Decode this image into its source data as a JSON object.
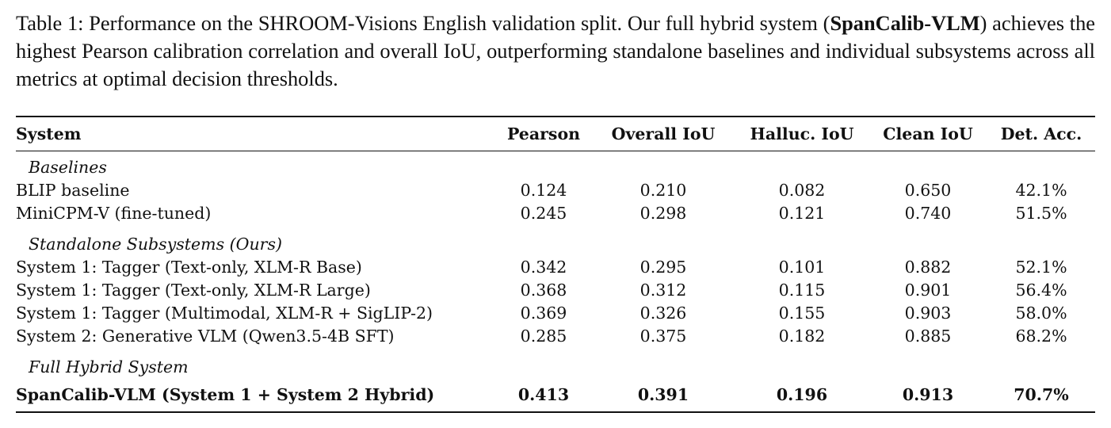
{
  "caption": {
    "prefix": "Table 1:  Performance on the SHROOM-Visions English validation split.  Our full hybrid system (",
    "bold": "SpanCalib-VLM",
    "suffix": ") achieves the highest Pearson calibration correlation and overall IoU, outperforming standalone baselines and individual subsystems across all metrics at optimal decision thresholds."
  },
  "table": {
    "headers": [
      "System",
      "Pearson",
      "Overall IoU",
      "Halluc. IoU",
      "Clean IoU",
      "Det. Acc."
    ],
    "groups": [
      {
        "label": "Baselines",
        "rows": [
          {
            "system": "BLIP baseline",
            "values": [
              "0.124",
              "0.210",
              "0.082",
              "0.650",
              "42.1%"
            ]
          },
          {
            "system": "MiniCPM-V (fine-tuned)",
            "values": [
              "0.245",
              "0.298",
              "0.121",
              "0.740",
              "51.5%"
            ]
          }
        ]
      },
      {
        "label": "Standalone Subsystems (Ours)",
        "rows": [
          {
            "system": "System 1:  Tagger (Text-only, XLM-R Base)",
            "values": [
              "0.342",
              "0.295",
              "0.101",
              "0.882",
              "52.1%"
            ]
          },
          {
            "system": "System 1:  Tagger (Text-only, XLM-R Large)",
            "values": [
              "0.368",
              "0.312",
              "0.115",
              "0.901",
              "56.4%"
            ]
          },
          {
            "system": "System 1:  Tagger (Multimodal, XLM-R + SigLIP-2)",
            "values": [
              "0.369",
              "0.326",
              "0.155",
              "0.903",
              "58.0%"
            ]
          },
          {
            "system": "System 2:  Generative VLM (Qwen3.5-4B SFT)",
            "values": [
              "0.285",
              "0.375",
              "0.182",
              "0.885",
              "68.2%"
            ]
          }
        ]
      },
      {
        "label": "Full Hybrid System",
        "rows": [
          {
            "system": "SpanCalib-VLM (System 1 + System 2 Hybrid)",
            "values": [
              "0.413",
              "0.391",
              "0.196",
              "0.913",
              "70.7%"
            ],
            "bold": true
          }
        ]
      }
    ]
  }
}
